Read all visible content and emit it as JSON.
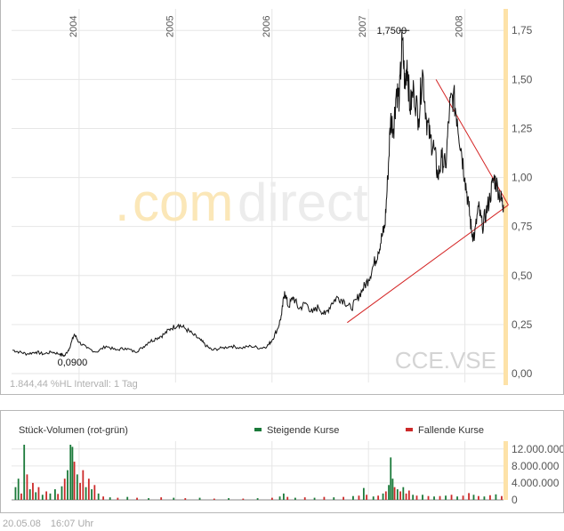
{
  "header": {},
  "chart_data": [
    {
      "type": "line",
      "ticker": "CCE.VSE",
      "watermark": {
        "brand_dot": ".",
        "brand_com": "com",
        "brand_rest": "direct"
      },
      "x_labels": [
        {
          "label": "2004",
          "t": 2004.0
        },
        {
          "label": "2005",
          "t": 2005.0
        },
        {
          "label": "2006",
          "t": 2006.0
        },
        {
          "label": "2007",
          "t": 2007.0
        },
        {
          "label": "2008",
          "t": 2008.0
        }
      ],
      "xlim": [
        2003.3,
        2008.4
      ],
      "ylim": [
        0,
        1.86
      ],
      "y_ticks": [
        {
          "label": "0,00",
          "v": 0
        },
        {
          "label": "0,25",
          "v": 0.25
        },
        {
          "label": "0,50",
          "v": 0.5
        },
        {
          "label": "0,75",
          "v": 0.75
        },
        {
          "label": "1,00",
          "v": 1.0
        },
        {
          "label": "1,25",
          "v": 1.25
        },
        {
          "label": "1,50",
          "v": 1.5
        },
        {
          "label": "1,75",
          "v": 1.75
        }
      ],
      "annotations": {
        "high_label": "1,7500",
        "high_t": 2007.37,
        "high_v": 1.75,
        "low_label": "0,0900",
        "low_t": 2003.85,
        "low_v": 0.09
      },
      "stats_text": "1.844,44 %HL Intervall: 1 Tag",
      "series": [
        {
          "values": [
            [
              2003.31,
              0.12
            ],
            [
              2003.38,
              0.11
            ],
            [
              2003.46,
              0.1
            ],
            [
              2003.55,
              0.11
            ],
            [
              2003.63,
              0.1
            ],
            [
              2003.72,
              0.11
            ],
            [
              2003.8,
              0.1
            ],
            [
              2003.85,
              0.09
            ],
            [
              2003.9,
              0.13
            ],
            [
              2003.95,
              0.2
            ],
            [
              2004.0,
              0.16
            ],
            [
              2004.08,
              0.13
            ],
            [
              2004.18,
              0.11
            ],
            [
              2004.28,
              0.14
            ],
            [
              2004.38,
              0.12
            ],
            [
              2004.48,
              0.13
            ],
            [
              2004.58,
              0.11
            ],
            [
              2004.65,
              0.13
            ],
            [
              2004.72,
              0.16
            ],
            [
              2004.8,
              0.18
            ],
            [
              2004.88,
              0.2
            ],
            [
              2004.95,
              0.23
            ],
            [
              2005.03,
              0.25
            ],
            [
              2005.1,
              0.23
            ],
            [
              2005.18,
              0.2
            ],
            [
              2005.26,
              0.17
            ],
            [
              2005.32,
              0.14
            ],
            [
              2005.38,
              0.12
            ],
            [
              2005.48,
              0.13
            ],
            [
              2005.58,
              0.14
            ],
            [
              2005.68,
              0.13
            ],
            [
              2005.78,
              0.14
            ],
            [
              2005.88,
              0.13
            ],
            [
              2005.95,
              0.14
            ],
            [
              2006.0,
              0.17
            ],
            [
              2006.06,
              0.23
            ],
            [
              2006.1,
              0.3
            ],
            [
              2006.13,
              0.42
            ],
            [
              2006.17,
              0.34
            ],
            [
              2006.22,
              0.39
            ],
            [
              2006.28,
              0.33
            ],
            [
              2006.35,
              0.36
            ],
            [
              2006.42,
              0.31
            ],
            [
              2006.48,
              0.34
            ],
            [
              2006.55,
              0.3
            ],
            [
              2006.62,
              0.36
            ],
            [
              2006.68,
              0.39
            ],
            [
              2006.75,
              0.37
            ],
            [
              2006.82,
              0.33
            ],
            [
              2006.88,
              0.38
            ],
            [
              2006.94,
              0.43
            ],
            [
              2007.0,
              0.48
            ],
            [
              2007.05,
              0.55
            ],
            [
              2007.1,
              0.62
            ],
            [
              2007.14,
              0.7
            ],
            [
              2007.17,
              0.75
            ],
            [
              2007.2,
              1.0
            ],
            [
              2007.23,
              1.3
            ],
            [
              2007.26,
              1.25
            ],
            [
              2007.29,
              1.45
            ],
            [
              2007.32,
              1.4
            ],
            [
              2007.35,
              1.7
            ],
            [
              2007.38,
              1.45
            ],
            [
              2007.4,
              1.6
            ],
            [
              2007.43,
              1.35
            ],
            [
              2007.47,
              1.45
            ],
            [
              2007.52,
              1.3
            ],
            [
              2007.56,
              1.55
            ],
            [
              2007.6,
              1.3
            ],
            [
              2007.64,
              1.2
            ],
            [
              2007.68,
              1.15
            ],
            [
              2007.72,
              1.0
            ],
            [
              2007.76,
              1.1
            ],
            [
              2007.8,
              1.05
            ],
            [
              2007.84,
              1.35
            ],
            [
              2007.88,
              1.42
            ],
            [
              2007.92,
              1.3
            ],
            [
              2007.96,
              1.15
            ],
            [
              2008.0,
              1.0
            ],
            [
              2008.04,
              0.85
            ],
            [
              2008.07,
              0.72
            ],
            [
              2008.1,
              0.7
            ],
            [
              2008.14,
              0.85
            ],
            [
              2008.18,
              0.75
            ],
            [
              2008.22,
              0.82
            ],
            [
              2008.26,
              0.9
            ],
            [
              2008.3,
              1.0
            ],
            [
              2008.34,
              0.95
            ],
            [
              2008.38,
              0.88
            ],
            [
              2008.4,
              0.86
            ]
          ]
        }
      ],
      "trendlines": [
        {
          "from": [
            2007.7,
            1.5
          ],
          "to": [
            2008.45,
            0.86
          ]
        },
        {
          "from": [
            2006.78,
            0.26
          ],
          "to": [
            2008.45,
            0.86
          ]
        }
      ]
    },
    {
      "type": "bar",
      "title": "Stück-Volumen (rot-grün)",
      "legend": [
        {
          "label": "Steigende Kurse",
          "color": "#1b7a3a"
        },
        {
          "label": "Fallende Kurse",
          "color": "#cc2a2a"
        }
      ],
      "y_ticks": [
        {
          "label": "0",
          "v": 0
        },
        {
          "label": "4.000.000",
          "v": 4000000
        },
        {
          "label": "8.000.000",
          "v": 8000000
        },
        {
          "label": "12.000.000",
          "v": 12000000
        }
      ],
      "ylim": [
        0,
        13000000
      ],
      "bars": [
        [
          2003.34,
          3000000,
          "up"
        ],
        [
          2003.37,
          5000000,
          "up"
        ],
        [
          2003.4,
          1500000,
          "down"
        ],
        [
          2003.43,
          13000000,
          "up"
        ],
        [
          2003.46,
          6000000,
          "down"
        ],
        [
          2003.49,
          2500000,
          "up"
        ],
        [
          2003.52,
          4000000,
          "down"
        ],
        [
          2003.55,
          1800000,
          "up"
        ],
        [
          2003.58,
          3000000,
          "down"
        ],
        [
          2003.62,
          1200000,
          "up"
        ],
        [
          2003.66,
          2000000,
          "down"
        ],
        [
          2003.7,
          1500000,
          "up"
        ],
        [
          2003.75,
          2500000,
          "up"
        ],
        [
          2003.78,
          1400000,
          "down"
        ],
        [
          2003.82,
          3200000,
          "up"
        ],
        [
          2003.85,
          5000000,
          "down"
        ],
        [
          2003.88,
          7000000,
          "up"
        ],
        [
          2003.91,
          13000000,
          "up"
        ],
        [
          2003.93,
          12500000,
          "up"
        ],
        [
          2003.95,
          9000000,
          "down"
        ],
        [
          2003.98,
          6000000,
          "up"
        ],
        [
          2004.01,
          4000000,
          "down"
        ],
        [
          2004.04,
          7000000,
          "down"
        ],
        [
          2004.07,
          3000000,
          "up"
        ],
        [
          2004.1,
          5000000,
          "down"
        ],
        [
          2004.13,
          2500000,
          "up"
        ],
        [
          2004.16,
          3500000,
          "down"
        ],
        [
          2004.2,
          1500000,
          "up"
        ],
        [
          2004.25,
          800000,
          "down"
        ],
        [
          2004.32,
          600000,
          "up"
        ],
        [
          2004.4,
          500000,
          "down"
        ],
        [
          2004.5,
          700000,
          "up"
        ],
        [
          2004.6,
          500000,
          "down"
        ],
        [
          2004.72,
          400000,
          "up"
        ],
        [
          2004.85,
          600000,
          "down"
        ],
        [
          2004.98,
          500000,
          "up"
        ],
        [
          2005.1,
          400000,
          "down"
        ],
        [
          2005.25,
          500000,
          "up"
        ],
        [
          2005.4,
          300000,
          "down"
        ],
        [
          2005.55,
          400000,
          "up"
        ],
        [
          2005.7,
          300000,
          "down"
        ],
        [
          2005.85,
          400000,
          "up"
        ],
        [
          2006.0,
          500000,
          "down"
        ],
        [
          2006.08,
          800000,
          "up"
        ],
        [
          2006.12,
          1500000,
          "up"
        ],
        [
          2006.16,
          700000,
          "down"
        ],
        [
          2006.24,
          500000,
          "up"
        ],
        [
          2006.34,
          600000,
          "down"
        ],
        [
          2006.44,
          500000,
          "up"
        ],
        [
          2006.54,
          700000,
          "down"
        ],
        [
          2006.64,
          600000,
          "up"
        ],
        [
          2006.74,
          700000,
          "down"
        ],
        [
          2006.84,
          900000,
          "up"
        ],
        [
          2006.9,
          1000000,
          "down"
        ],
        [
          2006.95,
          2800000,
          "up"
        ],
        [
          2006.98,
          1200000,
          "down"
        ],
        [
          2007.05,
          800000,
          "up"
        ],
        [
          2007.1,
          1000000,
          "down"
        ],
        [
          2007.15,
          1500000,
          "up"
        ],
        [
          2007.18,
          2000000,
          "down"
        ],
        [
          2007.21,
          3500000,
          "up"
        ],
        [
          2007.23,
          10000000,
          "up"
        ],
        [
          2007.25,
          5000000,
          "up"
        ],
        [
          2007.27,
          3000000,
          "down"
        ],
        [
          2007.3,
          2500000,
          "up"
        ],
        [
          2007.33,
          2000000,
          "down"
        ],
        [
          2007.36,
          3000000,
          "up"
        ],
        [
          2007.39,
          1500000,
          "down"
        ],
        [
          2007.42,
          2200000,
          "down"
        ],
        [
          2007.46,
          1200000,
          "up"
        ],
        [
          2007.5,
          1000000,
          "down"
        ],
        [
          2007.56,
          1200000,
          "up"
        ],
        [
          2007.62,
          900000,
          "down"
        ],
        [
          2007.68,
          800000,
          "up"
        ],
        [
          2007.74,
          900000,
          "down"
        ],
        [
          2007.8,
          1000000,
          "up"
        ],
        [
          2007.86,
          1200000,
          "down"
        ],
        [
          2007.92,
          800000,
          "up"
        ],
        [
          2007.98,
          1000000,
          "down"
        ],
        [
          2008.04,
          1600000,
          "down"
        ],
        [
          2008.09,
          1200000,
          "up"
        ],
        [
          2008.14,
          900000,
          "down"
        ],
        [
          2008.2,
          800000,
          "up"
        ],
        [
          2008.26,
          1100000,
          "down"
        ],
        [
          2008.32,
          1300000,
          "up"
        ],
        [
          2008.38,
          900000,
          "down"
        ]
      ]
    }
  ],
  "footer": {
    "date": "20.05.08",
    "time": "16:07 Uhr"
  }
}
